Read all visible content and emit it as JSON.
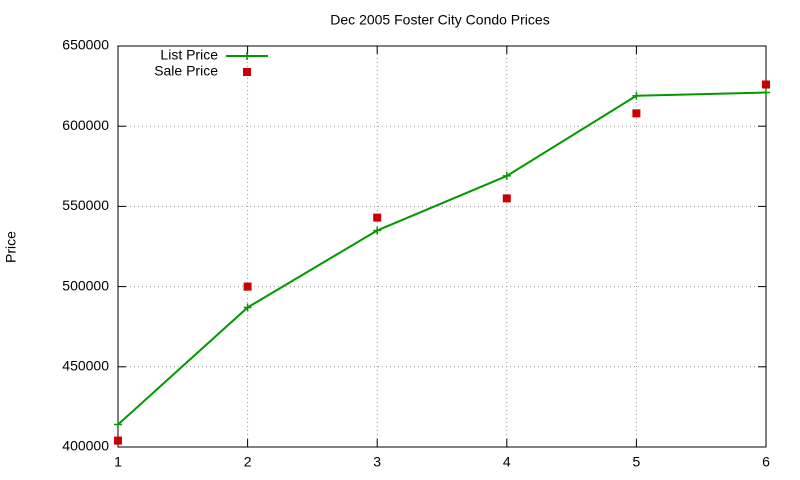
{
  "chart_data": {
    "type": "line",
    "title": "Dec 2005 Foster City Condo Prices",
    "y_label": "Price",
    "x": [
      1,
      2,
      3,
      4,
      5,
      6
    ],
    "series": [
      {
        "name": "List Price",
        "color": "#009900",
        "mode": "lines+markers",
        "values": [
          414000,
          487000,
          535000,
          569000,
          619000,
          621000
        ]
      },
      {
        "name": "Sale Price",
        "color": "#cc0000",
        "mode": "markers",
        "values": [
          404000,
          500000,
          543000,
          555000,
          608000,
          626000
        ]
      }
    ],
    "xlim": [
      1,
      6
    ],
    "xticks": [
      1,
      2,
      3,
      4,
      5,
      6
    ],
    "ylim": [
      400000,
      650000
    ],
    "yticks": [
      400000,
      450000,
      500000,
      550000,
      600000,
      650000
    ],
    "grid": true,
    "legend": "top-left"
  }
}
